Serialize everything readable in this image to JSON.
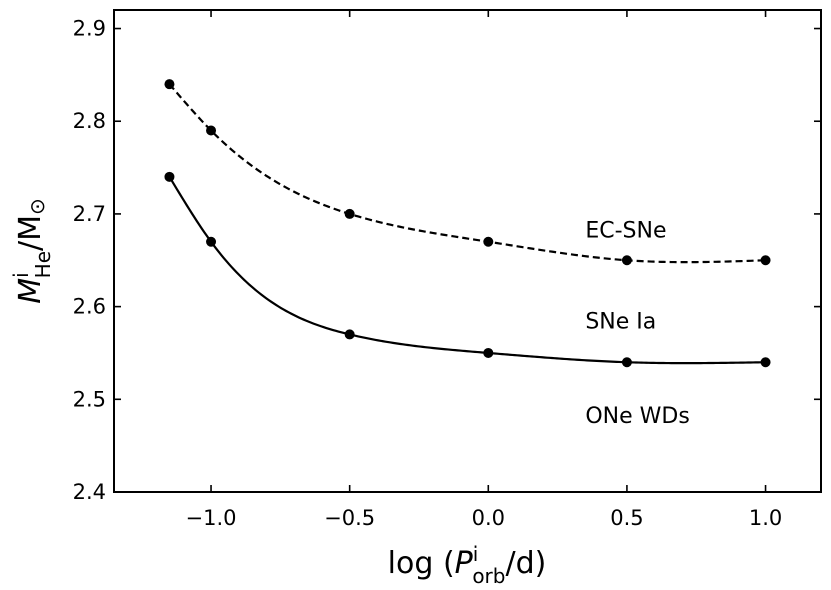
{
  "chart_data": {
    "type": "line",
    "x_label": {
      "base": "log (",
      "symbol": "P",
      "sup": "i",
      "sub": "orb",
      "tail": "/d)"
    },
    "y_label": {
      "symbol": "M",
      "sup": "i",
      "sub": "He",
      "tail": "/M",
      "sun": "⊙"
    },
    "xlim": [
      -1.35,
      1.2
    ],
    "ylim": [
      2.4,
      2.92
    ],
    "x_ticks": [
      -1.0,
      -0.5,
      0.0,
      0.5,
      1.0
    ],
    "x_tick_labels": [
      "−1.0",
      "−0.5",
      "0.0",
      "0.5",
      "1.0"
    ],
    "y_ticks": [
      2.4,
      2.5,
      2.6,
      2.7,
      2.8,
      2.9
    ],
    "y_tick_labels": [
      "2.4",
      "2.5",
      "2.6",
      "2.7",
      "2.8",
      "2.9"
    ],
    "grid": false,
    "series": [
      {
        "style": "dashed",
        "color": "#000000",
        "x": [
          -1.15,
          -1.0,
          -0.5,
          0.0,
          0.5,
          1.0
        ],
        "y": [
          2.84,
          2.79,
          2.7,
          2.67,
          2.65,
          2.65
        ]
      },
      {
        "style": "solid",
        "color": "#000000",
        "x": [
          -1.15,
          -1.0,
          -0.5,
          0.0,
          0.5,
          1.0
        ],
        "y": [
          2.74,
          2.67,
          2.57,
          2.55,
          2.54,
          2.54
        ]
      }
    ],
    "annotations": [
      {
        "text": "EC-SNe",
        "x": 0.35,
        "y": 2.683
      },
      {
        "text": "SNe Ia",
        "x": 0.35,
        "y": 2.585
      },
      {
        "text": "ONe WDs",
        "x": 0.35,
        "y": 2.483
      }
    ]
  }
}
